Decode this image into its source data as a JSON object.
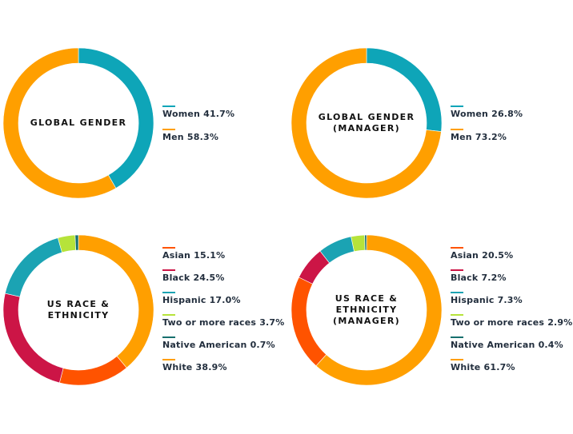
{
  "chart_data": [
    {
      "type": "pie",
      "title_lines": [
        "GLOBAL GENDER"
      ],
      "labels": [
        "Women",
        "Men"
      ],
      "values": [
        41.7,
        58.3
      ],
      "value_labels": [
        "41.7%",
        "58.3%"
      ],
      "colors": [
        "#0ea5b8",
        "#ff9f00"
      ],
      "legend": "right"
    },
    {
      "type": "pie",
      "title_lines": [
        "GLOBAL GENDER",
        "(MANAGER)"
      ],
      "labels": [
        "Women",
        "Men"
      ],
      "values": [
        26.8,
        73.2
      ],
      "value_labels": [
        "26.8%",
        "73.2%"
      ],
      "colors": [
        "#0ea5b8",
        "#ff9f00"
      ],
      "legend": "right"
    },
    {
      "type": "pie",
      "title_lines": [
        "US RACE &",
        "ETHNICITY"
      ],
      "labels": [
        "Asian",
        "Black",
        "Hispanic",
        "Two or more races",
        "Native American",
        "White"
      ],
      "values": [
        15.1,
        24.5,
        17.0,
        3.7,
        0.7,
        38.9
      ],
      "value_labels": [
        "15.1%",
        "24.5%",
        "17.0%",
        "3.7%",
        "0.7%",
        "38.9%"
      ],
      "colors": [
        "#ff5300",
        "#cc1546",
        "#1ba3b3",
        "#b6e33a",
        "#16706e",
        "#ff9f00"
      ],
      "legend": "right"
    },
    {
      "type": "pie",
      "title_lines": [
        "US RACE &",
        "ETHNICITY",
        "(MANAGER)"
      ],
      "labels": [
        "Asian",
        "Black",
        "Hispanic",
        "Two or more races",
        "Native American",
        "White"
      ],
      "values": [
        20.5,
        7.2,
        7.3,
        2.9,
        0.4,
        61.7
      ],
      "value_labels": [
        "20.5%",
        "7.2%",
        "7.3%",
        "2.9%",
        "0.4%",
        "61.7%"
      ],
      "colors": [
        "#ff5300",
        "#cc1546",
        "#1ba3b3",
        "#b6e33a",
        "#16706e",
        "#ff9f00"
      ],
      "legend": "right"
    }
  ]
}
